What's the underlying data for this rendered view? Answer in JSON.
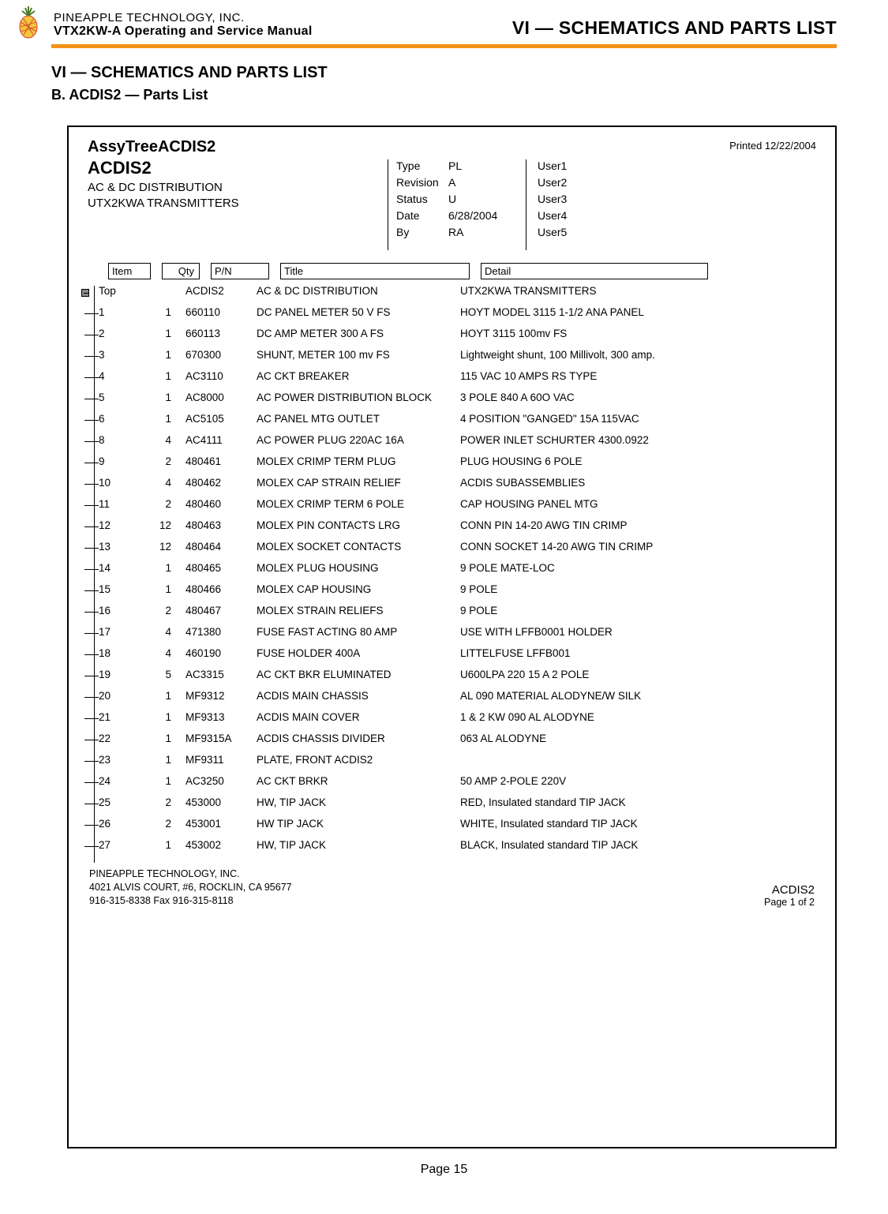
{
  "header": {
    "company": "PINEAPPLE TECHNOLOGY, INC.",
    "manual": "VTX2KW-A Operating and Service Manual",
    "section_right": "VI — SCHEMATICS AND PARTS LIST"
  },
  "section": {
    "title": "VI — SCHEMATICS AND PARTS LIST",
    "subtitle": "B. ACDIS2 — Parts List"
  },
  "assy": {
    "tree_title": "AssyTreeACDIS2",
    "printed": "Printed 12/22/2004",
    "code": "ACDIS2",
    "desc1": "AC & DC DISTRIBUTION",
    "desc2": "UTX2KWA TRANSMITTERS"
  },
  "meta": {
    "rows": [
      {
        "label": "Type",
        "val": "PL"
      },
      {
        "label": "Revision",
        "val": "A"
      },
      {
        "label": "Status",
        "val": "U"
      },
      {
        "label": "Date",
        "val": "6/28/2004"
      },
      {
        "label": "By",
        "val": "RA"
      }
    ],
    "users": [
      "User1",
      "User2",
      "User3",
      "User4",
      "User5"
    ]
  },
  "table": {
    "headers": {
      "item": "Item",
      "qty": "Qty",
      "pn": "P/N",
      "title": "Title",
      "detail": "Detail"
    },
    "top_row": {
      "item": "Top",
      "qty": "",
      "pn": "ACDIS2",
      "title": "AC & DC DISTRIBUTION",
      "detail": "UTX2KWA TRANSMITTERS"
    },
    "rows": [
      {
        "item": "1",
        "qty": "1",
        "pn": "660110",
        "title": "DC PANEL METER 50 V FS",
        "detail": "HOYT MODEL 3115 1-1/2 ANA PANEL"
      },
      {
        "item": "2",
        "qty": "1",
        "pn": "660113",
        "title": "DC AMP METER 300 A FS",
        "detail": "HOYT 3115 100mv FS"
      },
      {
        "item": "3",
        "qty": "1",
        "pn": "670300",
        "title": "SHUNT, METER 100 mv FS",
        "detail": "Lightweight shunt, 100 Millivolt, 300 amp."
      },
      {
        "item": "4",
        "qty": "1",
        "pn": "AC3110",
        "title": "AC CKT BREAKER",
        "detail": "115 VAC 10 AMPS RS TYPE"
      },
      {
        "item": "5",
        "qty": "1",
        "pn": "AC8000",
        "title": "AC POWER DISTRIBUTION BLOCK",
        "detail": "3 POLE 840 A 60O VAC"
      },
      {
        "item": "6",
        "qty": "1",
        "pn": "AC5105",
        "title": "AC PANEL MTG OUTLET",
        "detail": "4 POSITION \"GANGED\" 15A 115VAC"
      },
      {
        "item": "8",
        "qty": "4",
        "pn": "AC4111",
        "title": "AC POWER PLUG 220AC 16A",
        "detail": "POWER INLET SCHURTER 4300.0922"
      },
      {
        "item": "9",
        "qty": "2",
        "pn": "480461",
        "title": "MOLEX CRIMP TERM PLUG",
        "detail": "PLUG HOUSING 6 POLE"
      },
      {
        "item": "10",
        "qty": "4",
        "pn": "480462",
        "title": "MOLEX CAP STRAIN RELIEF",
        "detail": "ACDIS SUBASSEMBLIES"
      },
      {
        "item": "11",
        "qty": "2",
        "pn": "480460",
        "title": "MOLEX CRIMP TERM 6 POLE",
        "detail": "CAP HOUSING  PANEL MTG"
      },
      {
        "item": "12",
        "qty": "12",
        "pn": "480463",
        "title": "MOLEX PIN CONTACTS LRG",
        "detail": "CONN PIN 14-20 AWG TIN CRIMP"
      },
      {
        "item": "13",
        "qty": "12",
        "pn": "480464",
        "title": "MOLEX SOCKET CONTACTS",
        "detail": "CONN SOCKET 14-20 AWG TIN CRIMP"
      },
      {
        "item": "14",
        "qty": "1",
        "pn": "480465",
        "title": "MOLEX PLUG HOUSING",
        "detail": "9 POLE MATE-LOC"
      },
      {
        "item": "15",
        "qty": "1",
        "pn": "480466",
        "title": "MOLEX CAP HOUSING",
        "detail": "9 POLE"
      },
      {
        "item": "16",
        "qty": "2",
        "pn": "480467",
        "title": "MOLEX STRAIN RELIEFS",
        "detail": "9 POLE"
      },
      {
        "item": "17",
        "qty": "4",
        "pn": "471380",
        "title": "FUSE FAST ACTING 80 AMP",
        "detail": "USE WITH LFFB0001 HOLDER"
      },
      {
        "item": "18",
        "qty": "4",
        "pn": "460190",
        "title": "FUSE HOLDER 400A",
        "detail": "LITTELFUSE LFFB001"
      },
      {
        "item": "19",
        "qty": "5",
        "pn": "AC3315",
        "title": "AC CKT BKR ELUMINATED",
        "detail": "U600LPA 220 15 A 2 POLE"
      },
      {
        "item": "20",
        "qty": "1",
        "pn": "MF9312",
        "title": "ACDIS MAIN CHASSIS",
        "detail": "AL 090 MATERIAL ALODYNE/W SILK"
      },
      {
        "item": "21",
        "qty": "1",
        "pn": "MF9313",
        "title": "ACDIS MAIN COVER",
        "detail": "1 & 2 KW 090 AL ALODYNE"
      },
      {
        "item": "22",
        "qty": "1",
        "pn": "MF9315A",
        "title": "ACDIS CHASSIS DIVIDER",
        "detail": "063 AL ALODYNE"
      },
      {
        "item": "23",
        "qty": "1",
        "pn": "MF9311",
        "title": "PLATE, FRONT ACDIS2",
        "detail": ""
      },
      {
        "item": "24",
        "qty": "1",
        "pn": "AC3250",
        "title": "AC CKT BRKR",
        "detail": "50 AMP 2-POLE 220V"
      },
      {
        "item": "25",
        "qty": "2",
        "pn": "453000",
        "title": "HW, TIP JACK",
        "detail": "RED, Insulated standard TIP JACK"
      },
      {
        "item": "26",
        "qty": "2",
        "pn": "453001",
        "title": "HW TIP JACK",
        "detail": "WHITE, Insulated standard TIP JACK"
      },
      {
        "item": "27",
        "qty": "1",
        "pn": "453002",
        "title": "HW, TIP JACK",
        "detail": "BLACK, Insulated standard TIP JACK"
      }
    ]
  },
  "footer": {
    "company": "PINEAPPLE TECHNOLOGY, INC.",
    "address": "4021 ALVIS COURT, #6, ROCKLIN, CA 95677",
    "phone": "916-315-8338   Fax 916-315-8118",
    "code": "ACDIS2",
    "page": "Page 1 of   2"
  },
  "page_number": "Page 15",
  "colors": {
    "accent": "#f59218",
    "logo_green": "#4a7c2a",
    "logo_red": "#d63a2a",
    "logo_yellow": "#f2c53d"
  }
}
